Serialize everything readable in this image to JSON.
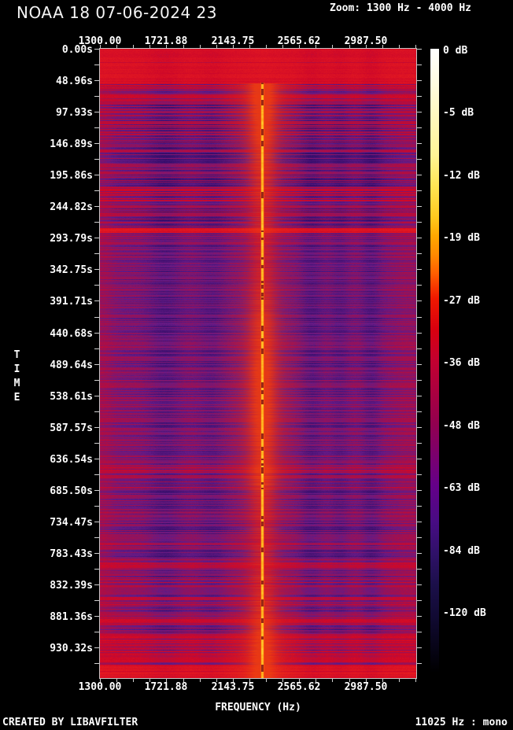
{
  "header": {
    "title": "NOAA 18 07-06-2024 23",
    "zoom_label": "Zoom: 1300 Hz - 4000 Hz"
  },
  "footer": {
    "created_by": "CREATED BY LIBAVFILTER",
    "stream_info": "11025 Hz : mono"
  },
  "axes": {
    "x_label": "FREQUENCY (Hz)",
    "y_label": "TIME"
  },
  "chart_data": {
    "type": "heatmap",
    "variant": "audio-spectrogram",
    "title": "NOAA 18 07-06-2024 23",
    "xlabel": "FREQUENCY (Hz)",
    "ylabel": "TIME",
    "x_zoom_range_hz": [
      1300,
      4000
    ],
    "x_tick_labels": [
      "1300.00",
      "1721.88",
      "2143.75",
      "2565.62",
      "2987.50"
    ],
    "y_tick_labels": [
      "0.00s",
      "48.96s",
      "97.93s",
      "146.89s",
      "195.86s",
      "244.82s",
      "293.79s",
      "342.75s",
      "391.71s",
      "440.68s",
      "489.64s",
      "538.61s",
      "587.57s",
      "636.54s",
      "685.50s",
      "734.47s",
      "783.43s",
      "832.39s",
      "881.36s",
      "930.32s"
    ],
    "colorbar_labels": [
      "0 dB",
      "-5 dB",
      "-12 dB",
      "-19 dB",
      "-27 dB",
      "-36 dB",
      "-48 dB",
      "-63 dB",
      "-84 dB",
      "-120 dB"
    ],
    "colorbar_gradient_stops": [
      [
        "0%",
        "#ffffff"
      ],
      [
        "5%",
        "#fffce4"
      ],
      [
        "10%",
        "#fff9c4"
      ],
      [
        "17%",
        "#fff596"
      ],
      [
        "22%",
        "#ffe554"
      ],
      [
        "27%",
        "#ffc91e"
      ],
      [
        "30%",
        "#ffa800"
      ],
      [
        "33%",
        "#ff8a00"
      ],
      [
        "36%",
        "#ff5e00"
      ],
      [
        "40%",
        "#f01800"
      ],
      [
        "45%",
        "#d8000f"
      ],
      [
        "50%",
        "#c20030"
      ],
      [
        "60%",
        "#93004f"
      ],
      [
        "70%",
        "#650089"
      ],
      [
        "76%",
        "#470c83"
      ],
      [
        "81%",
        "#2f1168"
      ],
      [
        "86%",
        "#1b0f49"
      ],
      [
        "91%",
        "#110a33"
      ],
      [
        "96%",
        "#070417"
      ],
      [
        "100%",
        "#000000"
      ]
    ],
    "features": {
      "carrier_line": {
        "approx_freq_hz": 2330,
        "starts_at_s": 53,
        "description": "bright orange APT subcarrier line running full duration"
      },
      "hot_noise_bands_s": [
        [
          0,
          52
        ],
        [
          938,
          962
        ]
      ],
      "dark_striped_region_s": [
        [
          160,
          218
        ]
      ],
      "bright_horizontal_stripe_s": 279
    },
    "render": {
      "seed": 1337,
      "carrier_x_rel": 0.5124,
      "carrier_start_row": 43,
      "carrier_dark_rows": [
        [
          700,
          709
        ],
        [
          783,
          792
        ]
      ],
      "segments": [
        [
          0.0,
          0.054,
          -0.1,
          0.05,
          0.12,
          0.0,
          0
        ],
        [
          0.054,
          0.082,
          0.12,
          0.3,
          0.5,
          0.85,
          0
        ],
        [
          0.082,
          0.163,
          0.42,
          0.5,
          0.8,
          0.8,
          0
        ],
        [
          0.163,
          0.219,
          0.66,
          0.6,
          0.85,
          0.8,
          0
        ],
        [
          0.219,
          0.247,
          0.3,
          0.45,
          0.7,
          0.9,
          0
        ],
        [
          0.247,
          0.284,
          0.55,
          0.52,
          0.8,
          0.85,
          0
        ],
        [
          0.284,
          0.2915,
          -0.2,
          0.1,
          0.1,
          1.0,
          0
        ],
        [
          0.2915,
          0.658,
          0.7,
          0.42,
          0.4,
          0.75,
          0
        ],
        [
          0.658,
          0.7,
          0.42,
          0.5,
          0.5,
          0.95,
          0
        ],
        [
          0.7,
          0.782,
          0.68,
          0.45,
          0.42,
          0.78,
          0
        ],
        [
          0.782,
          0.942,
          0.46,
          0.42,
          0.48,
          0.88,
          12
        ],
        [
          0.942,
          0.979,
          0.26,
          0.35,
          0.5,
          0.92,
          0
        ],
        [
          0.979,
          1.001,
          -0.1,
          0.08,
          0.12,
          0.88,
          0
        ]
      ],
      "dark_bands": [
        {
          "c": 0.205,
          "w": 0.055,
          "s": 0.5
        },
        {
          "c": 0.352,
          "w": 0.048,
          "s": 0.38
        },
        {
          "c": 0.668,
          "w": 0.038,
          "s": 0.48
        },
        {
          "c": 0.757,
          "w": 0.032,
          "s": 0.4
        },
        {
          "c": 0.856,
          "w": 0.032,
          "s": 0.48
        }
      ],
      "red_columns": [
        {
          "c": 0.005,
          "w": 0.04,
          "s": 0.45
        },
        {
          "c": 0.5124,
          "w": 0.045,
          "s": 0.85
        },
        {
          "c": 0.975,
          "w": 0.05,
          "s": 0.3
        }
      ],
      "palette": {
        "red": [
          206,
          8,
          40
        ],
        "hot": [
          235,
          30,
          30
        ],
        "purple": [
          100,
          26,
          133
        ],
        "dark_violet": [
          50,
          12,
          104
        ],
        "glow_rgb": [
          238,
          64,
          16
        ],
        "carrier_dark": [
          150,
          40,
          22
        ],
        "carrier_edge": [
          255,
          110,
          0
        ],
        "carrier_core": [
          255,
          200,
          50
        ]
      }
    }
  }
}
